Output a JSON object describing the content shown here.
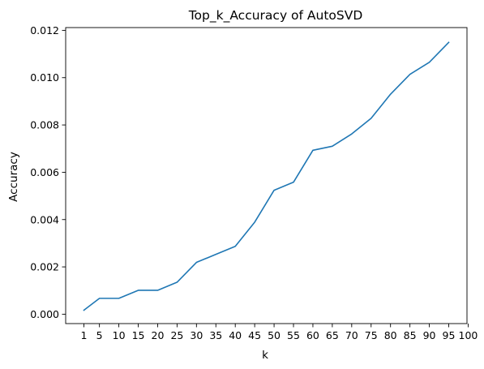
{
  "chart_data": {
    "type": "line",
    "title": "Top_k_Accuracy of AutoSVD",
    "xlabel": "k",
    "ylabel": "Accuracy",
    "x": [
      1,
      5,
      10,
      15,
      20,
      25,
      30,
      35,
      40,
      45,
      50,
      55,
      60,
      65,
      70,
      75,
      80,
      85,
      90,
      95
    ],
    "series": [
      {
        "color": "#1f77b4",
        "values": [
          0.00017,
          0.00067,
          0.00067,
          0.00101,
          0.00101,
          0.00135,
          0.00219,
          0.00253,
          0.00287,
          0.00389,
          0.00524,
          0.00558,
          0.00693,
          0.0071,
          0.00762,
          0.00828,
          0.0093,
          0.01014,
          0.01065,
          0.01149
        ]
      }
    ],
    "x_ticks": [
      "1",
      "5",
      "10",
      "15",
      "20",
      "25",
      "30",
      "35",
      "40",
      "45",
      "50",
      "55",
      "60",
      "65",
      "70",
      "75",
      "80",
      "85",
      "90",
      "95",
      "100"
    ],
    "y_ticks": [
      "0.000",
      "0.002",
      "0.004",
      "0.006",
      "0.008",
      "0.010",
      "0.012"
    ],
    "xlim": [
      -3.7,
      99.7
    ],
    "ylim": [
      -0.000397,
      0.012117
    ],
    "grid": false,
    "legend": "none"
  }
}
